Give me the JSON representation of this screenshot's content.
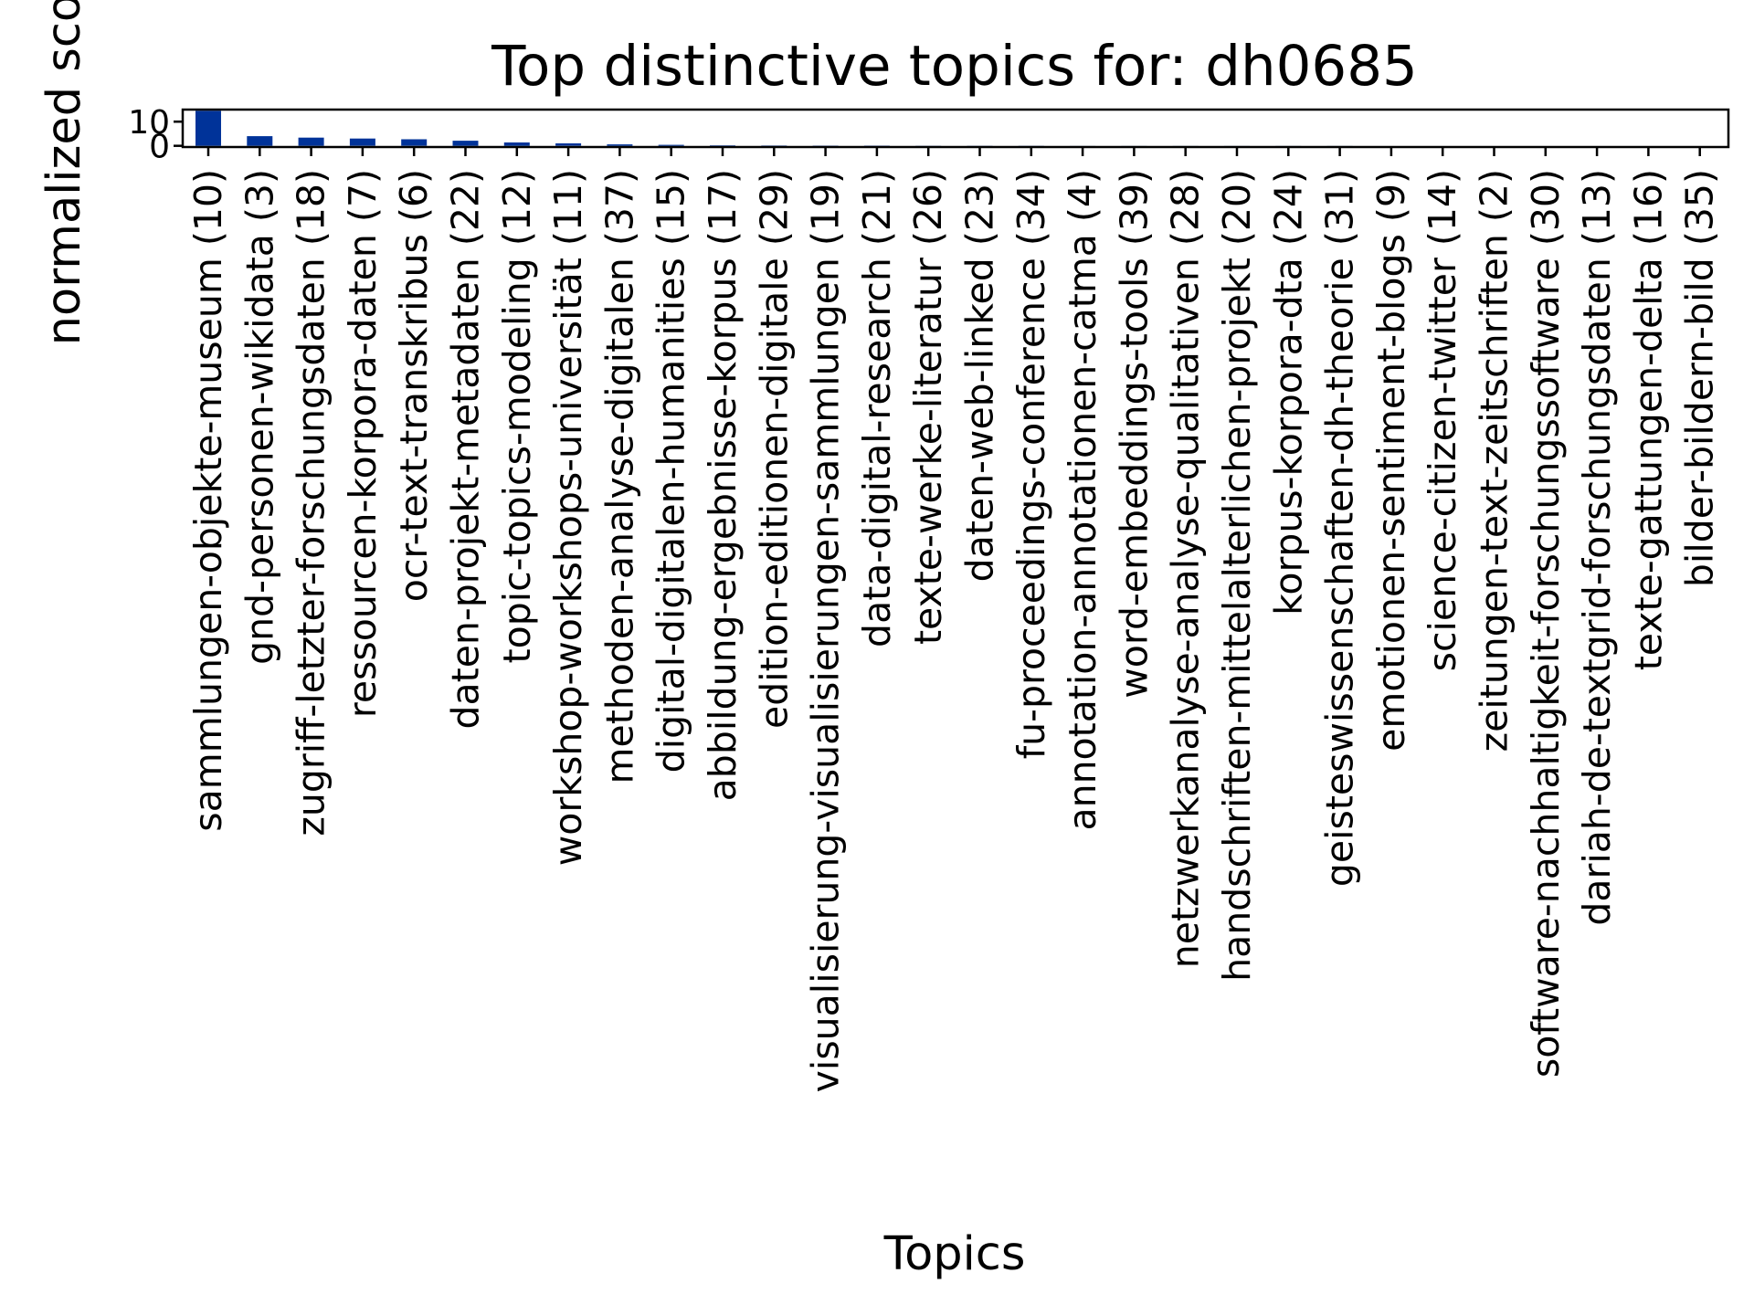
{
  "chart_data": {
    "type": "bar",
    "title": "Top distinctive topics for: dh0685",
    "xlabel": "Topics",
    "ylabel": "normalized score",
    "ylim": [
      -0.5,
      15
    ],
    "yticks": [
      0,
      10
    ],
    "grid": false,
    "legend": "none",
    "bar_color": "#003399",
    "categories": [
      "sammlungen-objekte-museum (10)",
      "gnd-personen-wikidata (3)",
      "zugriff-letzter-forschungsdaten (18)",
      "ressourcen-korpora-daten (7)",
      "ocr-text-transkribus (6)",
      "daten-projekt-metadaten (22)",
      "topic-topics-modeling (12)",
      "workshop-workshops-universität (11)",
      "methoden-analyse-digitalen (37)",
      "digital-digitalen-humanities (15)",
      "abbildung-ergebnisse-korpus (17)",
      "edition-editionen-digitale (29)",
      "visualisierung-visualisierungen-sammlungen (19)",
      "data-digital-research (21)",
      "texte-werke-literatur (26)",
      "daten-web-linked (23)",
      "fu-proceedings-conference (34)",
      "annotation-annotationen-catma (4)",
      "word-embeddings-tools (39)",
      "netzwerkanalyse-analyse-qualitativen (28)",
      "handschriften-mittelalterlichen-projekt (20)",
      "korpus-korpora-dta (24)",
      "geisteswissenschaften-dh-theorie (31)",
      "emotionen-sentiment-blogs (9)",
      "science-citizen-twitter (14)",
      "zeitungen-text-zeitschriften (2)",
      "software-nachhaltigkeit-forschungssoftware (30)",
      "dariah-de-textgrid-forschungsdaten (13)",
      "texte-gattungen-delta (16)",
      "bilder-bildern-bild (35)"
    ],
    "values": [
      14.5,
      4.0,
      3.4,
      3.0,
      2.7,
      2.1,
      1.4,
      1.0,
      0.6,
      0.4,
      0.2,
      0.15,
      0.12,
      0.1,
      0.08,
      0.07,
      0.06,
      0.05,
      0.04,
      0.03,
      0.02,
      0.02,
      0.02,
      0.01,
      0.01,
      0.01,
      0.01,
      0.01,
      0.01,
      0.0
    ]
  }
}
